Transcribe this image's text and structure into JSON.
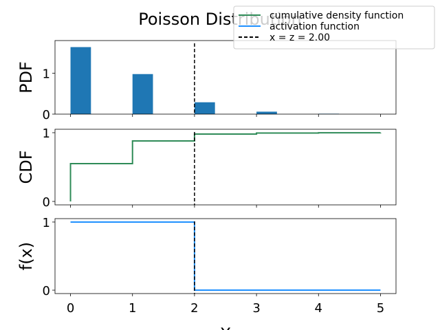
{
  "chart_data": {
    "type": "bar",
    "title": "Poisson Distribution",
    "xlabel": "X",
    "x_ticks": [
      "0",
      "1",
      "2",
      "3",
      "4",
      "5"
    ],
    "xlim": [
      -0.25,
      5.25
    ],
    "legend": {
      "placement": "top-right",
      "entries": [
        {
          "label": "cumulative density function",
          "color": "#2e8b57",
          "style": "solid"
        },
        {
          "label": "activation function",
          "color": "#1e90ff",
          "style": "solid"
        },
        {
          "label": "x = z = 2.00",
          "color": "#000000",
          "style": "dashed"
        }
      ]
    },
    "threshold_x": 2,
    "panels": [
      {
        "name": "pdf",
        "ylabel": "PDF",
        "type": "bar",
        "ylim": [
          0,
          1.8
        ],
        "y_ticks": [
          0,
          1
        ],
        "bar_color": "#1f77b4",
        "bar_width": 0.33,
        "x": [
          0,
          1,
          2,
          3,
          4,
          5
        ],
        "values": [
          1.64,
          0.98,
          0.29,
          0.06,
          0.01,
          0.0
        ]
      },
      {
        "name": "cdf",
        "ylabel": "CDF",
        "type": "step",
        "ylim": [
          -0.05,
          1.05
        ],
        "y_ticks": [
          0,
          1
        ],
        "line_color": "#2e8b57",
        "x": [
          0,
          1,
          2,
          3,
          4,
          5
        ],
        "values": [
          0.55,
          0.88,
          0.98,
          0.995,
          0.999,
          1.0
        ]
      },
      {
        "name": "activation",
        "ylabel": "f(x)",
        "type": "step",
        "ylim": [
          -0.05,
          1.05
        ],
        "y_ticks": [
          0,
          1
        ],
        "line_color": "#1e90ff",
        "x": [
          0,
          2,
          2,
          5
        ],
        "values": [
          1,
          1,
          0,
          0
        ]
      }
    ]
  }
}
